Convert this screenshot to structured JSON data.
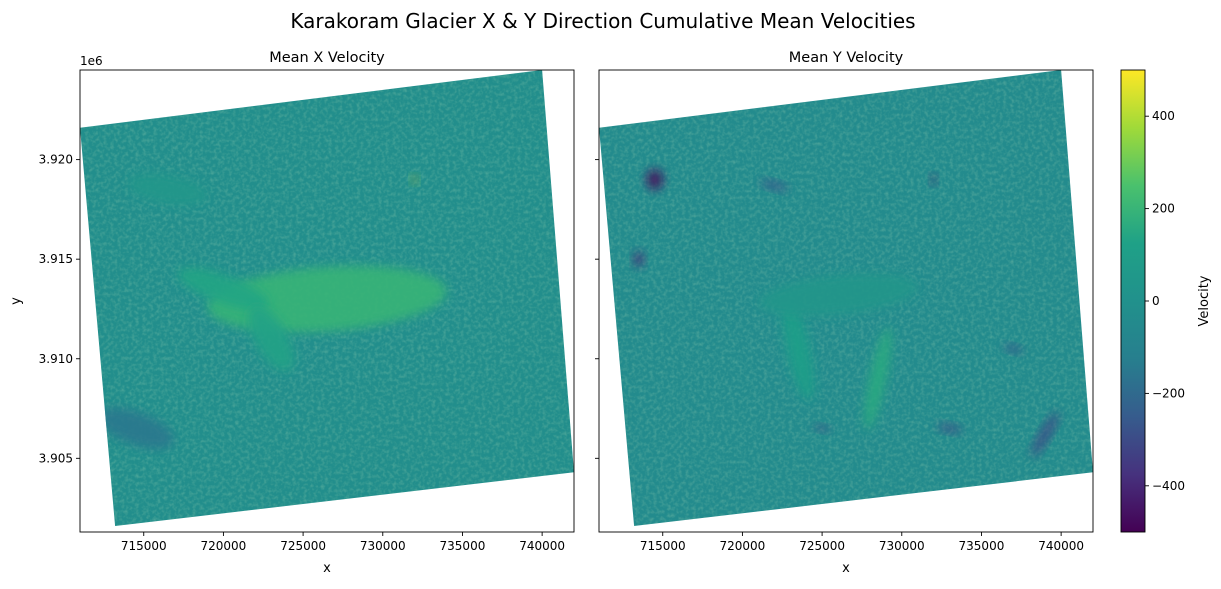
{
  "chart_data": {
    "type": "heatmap",
    "title": "Karakoram Glacier X & Y Direction Cumulative Mean Velocities",
    "panels": [
      {
        "title": "Mean X Velocity",
        "xlabel": "x",
        "ylabel": "y",
        "y_offset_label": "1e6",
        "xlim": [
          711000,
          742000
        ],
        "ylim": [
          3901300,
          3924500
        ],
        "xticks": [
          715000,
          720000,
          725000,
          730000,
          735000,
          740000
        ],
        "xtick_labels": [
          "715000",
          "720000",
          "725000",
          "730000",
          "735000",
          "740000"
        ],
        "yticks": [
          3905000,
          3910000,
          3915000,
          3920000
        ],
        "ytick_labels": [
          "3.905",
          "3.910",
          "3.915",
          "3.920"
        ],
        "footprint_corners": [
          [
            711000,
            3921600
          ],
          [
            740000,
            3924500
          ],
          [
            742000,
            3904300
          ],
          [
            713200,
            3901600
          ]
        ],
        "background_velocity": -20,
        "features": [
          {
            "x": 726500,
            "y": 3913000,
            "rx": 7500,
            "ry": 1600,
            "rot": -4,
            "value": 200
          },
          {
            "x": 720000,
            "y": 3913500,
            "rx": 3000,
            "ry": 700,
            "rot": 20,
            "value": 140
          },
          {
            "x": 723000,
            "y": 3911000,
            "rx": 1000,
            "ry": 1800,
            "rot": -30,
            "value": 130
          },
          {
            "x": 714500,
            "y": 3906500,
            "rx": 2500,
            "ry": 800,
            "rot": 20,
            "value": -150
          },
          {
            "x": 716500,
            "y": 3918500,
            "rx": 2500,
            "ry": 700,
            "rot": 10,
            "value": 50
          },
          {
            "x": 732000,
            "y": 3919000,
            "rx": 200,
            "ry": 200,
            "rot": 0,
            "value": 350
          },
          {
            "x": 732000,
            "y": 3919000,
            "rx": 120,
            "ry": 150,
            "rot": 0,
            "value": -300
          }
        ]
      },
      {
        "title": "Mean Y Velocity",
        "xlabel": "x",
        "xlim": [
          711000,
          742000
        ],
        "ylim": [
          3901300,
          3924500
        ],
        "xticks": [
          715000,
          720000,
          725000,
          730000,
          735000,
          740000
        ],
        "xtick_labels": [
          "715000",
          "720000",
          "725000",
          "730000",
          "735000",
          "740000"
        ],
        "footprint_corners": [
          [
            711000,
            3921600
          ],
          [
            740000,
            3924500
          ],
          [
            742000,
            3904300
          ],
          [
            713200,
            3901600
          ]
        ],
        "background_velocity": -40,
        "features": [
          {
            "x": 723500,
            "y": 3910500,
            "rx": 700,
            "ry": 2600,
            "rot": -12,
            "value": 110
          },
          {
            "x": 728500,
            "y": 3909000,
            "rx": 500,
            "ry": 2600,
            "rot": 12,
            "value": 160
          },
          {
            "x": 726000,
            "y": 3913200,
            "rx": 5000,
            "ry": 1000,
            "rot": -6,
            "value": 40
          },
          {
            "x": 714500,
            "y": 3919000,
            "rx": 500,
            "ry": 500,
            "rot": 0,
            "value": -480
          },
          {
            "x": 713500,
            "y": 3915000,
            "rx": 300,
            "ry": 350,
            "rot": 0,
            "value": -400
          },
          {
            "x": 732000,
            "y": 3919000,
            "rx": 180,
            "ry": 220,
            "rot": 0,
            "value": -420
          },
          {
            "x": 739000,
            "y": 3906200,
            "rx": 1600,
            "ry": 250,
            "rot": -60,
            "value": -300
          },
          {
            "x": 733000,
            "y": 3906500,
            "rx": 800,
            "ry": 200,
            "rot": 10,
            "value": -280
          },
          {
            "x": 737000,
            "y": 3910500,
            "rx": 600,
            "ry": 180,
            "rot": 15,
            "value": -260
          },
          {
            "x": 725000,
            "y": 3906500,
            "rx": 500,
            "ry": 150,
            "rot": 10,
            "value": -280
          },
          {
            "x": 722000,
            "y": 3918700,
            "rx": 900,
            "ry": 200,
            "rot": 15,
            "value": -260
          }
        ]
      }
    ],
    "colorbar": {
      "label": "Velocity",
      "range": [
        -500,
        500
      ],
      "ticks": [
        -400,
        -200,
        0,
        200,
        400
      ],
      "tick_labels": [
        "−400",
        "−200",
        "0",
        "200",
        "400"
      ],
      "colormap": "viridis"
    }
  }
}
